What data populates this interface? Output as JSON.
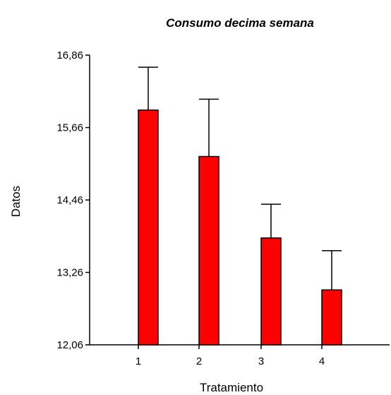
{
  "chart_data": {
    "type": "bar",
    "title": "Consumo  decima semana",
    "xlabel": "Tratamiento",
    "ylabel": "Datos",
    "categories": [
      "1",
      "2",
      "3",
      "4"
    ],
    "series": [
      {
        "values": [
          15.95,
          15.18,
          13.83,
          12.97
        ],
        "error_upper": [
          16.66,
          16.13,
          14.39,
          13.62
        ]
      }
    ],
    "yticks": [
      "12,06",
      "13,26",
      "14,46",
      "15,66",
      "16,86"
    ],
    "ytick_values": [
      12.06,
      13.26,
      14.46,
      15.66,
      16.86
    ],
    "ylim": [
      12.06,
      16.86
    ],
    "grid": false,
    "colors": {
      "bar_fill": "#ff0000",
      "bar_stroke": "#000000"
    }
  }
}
